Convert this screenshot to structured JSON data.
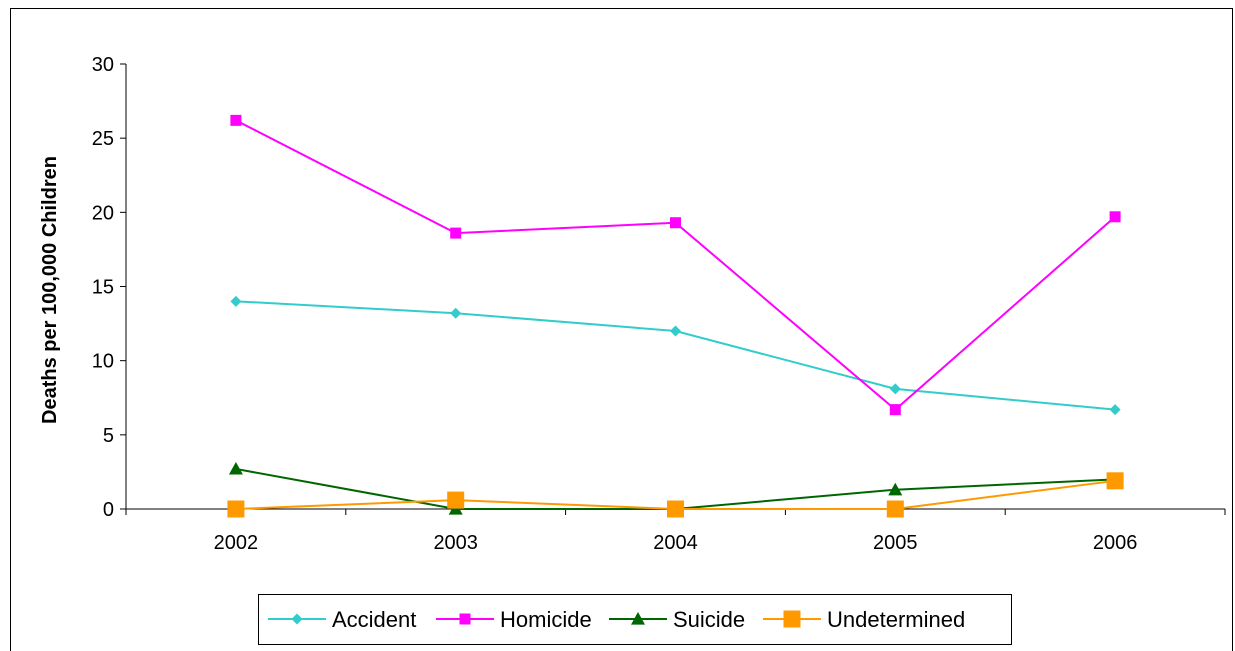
{
  "chart_data": {
    "type": "line",
    "title": "",
    "xlabel": "",
    "ylabel": "Deaths per 100,000 Children",
    "x": [
      "2002",
      "2003",
      "2004",
      "2005",
      "2006"
    ],
    "ylim": [
      0,
      30
    ],
    "yticks": [
      0,
      5,
      10,
      15,
      20,
      25,
      30
    ],
    "grid": false,
    "legend_position": "bottom",
    "series": [
      {
        "name": "Accident",
        "values": [
          14.0,
          13.2,
          12.0,
          8.1,
          6.7
        ],
        "color": "#33CCCC",
        "marker": "diamond"
      },
      {
        "name": "Homicide",
        "values": [
          26.2,
          18.6,
          19.3,
          6.7,
          19.7
        ],
        "color": "#FF00FF",
        "marker": "square"
      },
      {
        "name": "Suicide",
        "values": [
          2.7,
          0.0,
          0.0,
          1.3,
          2.0
        ],
        "color": "#006600",
        "marker": "triangle"
      },
      {
        "name": "Undetermined",
        "values": [
          0.0,
          0.6,
          0.0,
          0.0,
          1.9
        ],
        "color": "#FF9900",
        "marker": "square-large"
      }
    ]
  }
}
